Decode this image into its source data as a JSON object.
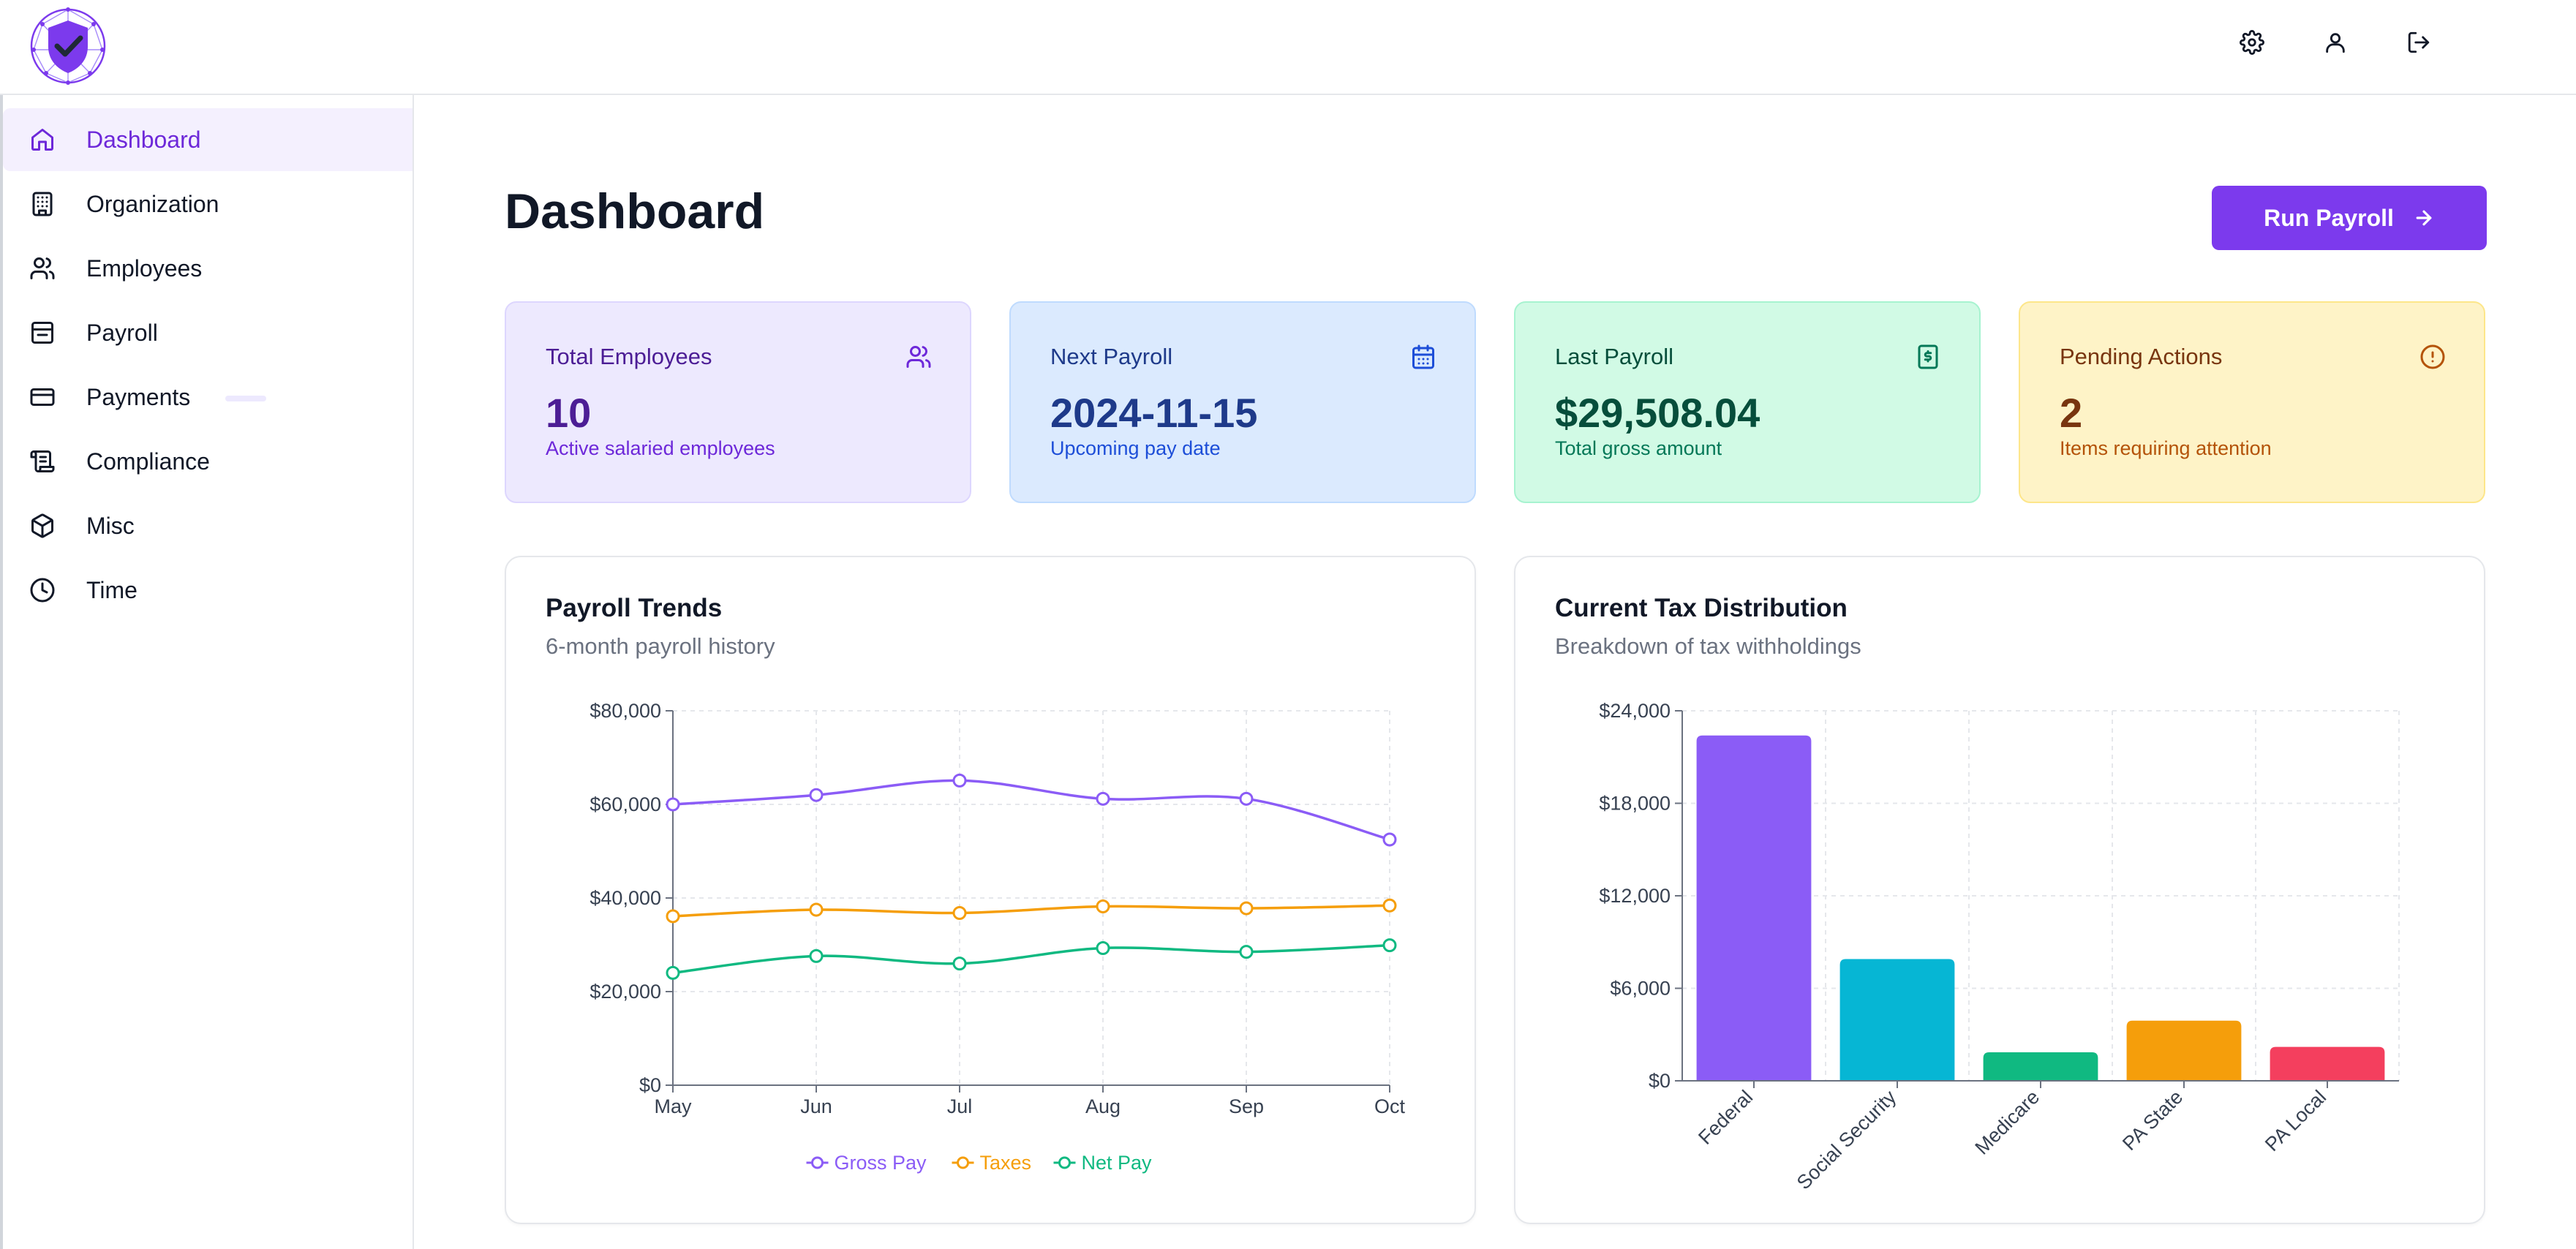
{
  "header": {
    "logo_icon": "shield-check-logo-icon",
    "actions": [
      {
        "name": "settings",
        "icon": "gear-icon"
      },
      {
        "name": "profile",
        "icon": "user-icon"
      },
      {
        "name": "logout",
        "icon": "logout-icon"
      }
    ]
  },
  "sidebar": {
    "items": [
      {
        "label": "Dashboard",
        "icon": "home-icon",
        "active": true
      },
      {
        "label": "Organization",
        "icon": "building-icon"
      },
      {
        "label": "Employees",
        "icon": "users-icon"
      },
      {
        "label": "Payroll",
        "icon": "payroll-icon"
      },
      {
        "label": "Payments",
        "icon": "credit-card-icon"
      },
      {
        "label": "Compliance",
        "icon": "scroll-icon"
      },
      {
        "label": "Misc",
        "icon": "package-icon"
      },
      {
        "label": "Time",
        "icon": "clock-icon"
      }
    ]
  },
  "main": {
    "title": "Dashboard",
    "run_payroll_label": "Run Payroll",
    "cards": [
      {
        "label": "Total Employees",
        "value": "10",
        "sub": "Active salaried employees",
        "icon": "users-icon",
        "bg": "#ede9fe",
        "border": "#ddd6fe",
        "label_color": "#4c1d95",
        "value_color": "#4c1d95",
        "sub_color": "#6d28d9"
      },
      {
        "label": "Next Payroll",
        "value": "2024-11-15",
        "sub": "Upcoming pay date",
        "icon": "calendar-icon",
        "bg": "#dbeafe",
        "border": "#bfdbfe",
        "label_color": "#1e3a8a",
        "value_color": "#1e3a8a",
        "sub_color": "#1d4ed8"
      },
      {
        "label": "Last Payroll",
        "value": "$29,508.04",
        "sub": "Total gross amount",
        "icon": "dollar-receipt-icon",
        "bg": "#d1fae5",
        "border": "#a7f3d0",
        "label_color": "#064e3b",
        "value_color": "#064e3b",
        "sub_color": "#047857"
      },
      {
        "label": "Pending Actions",
        "value": "2",
        "sub": "Items requiring attention",
        "icon": "alert-circle-icon",
        "bg": "#fef3c7",
        "border": "#fde68a",
        "label_color": "#78350f",
        "value_color": "#78350f",
        "sub_color": "#b45309"
      }
    ]
  },
  "charts": {
    "trends": {
      "title": "Payroll Trends",
      "subtitle": "6-month payroll history"
    },
    "tax": {
      "title": "Current Tax Distribution",
      "subtitle": "Breakdown of tax withholdings"
    }
  },
  "chart_data": [
    {
      "type": "line",
      "title": "Payroll Trends",
      "subtitle": "6-month payroll history",
      "x": [
        "May",
        "Jun",
        "Jul",
        "Aug",
        "Sep",
        "Oct"
      ],
      "ylim": [
        0,
        80000
      ],
      "yticks": [
        "$0",
        "$20,000",
        "$40,000",
        "$60,000",
        "$80,000"
      ],
      "ytick_values": [
        0,
        20000,
        40000,
        60000,
        80000
      ],
      "legend": "bottom-center",
      "grid": true,
      "series": [
        {
          "name": "Gross Pay",
          "color": "#8b5cf6",
          "values": [
            60000,
            62000,
            65100,
            61200,
            61200,
            52500
          ]
        },
        {
          "name": "Taxes",
          "color": "#f59e0b",
          "values": [
            36100,
            37500,
            36800,
            38200,
            37800,
            38400
          ]
        },
        {
          "name": "Net Pay",
          "color": "#10b981",
          "values": [
            24000,
            27600,
            26000,
            29300,
            28500,
            29900
          ]
        }
      ]
    },
    {
      "type": "bar",
      "title": "Current Tax Distribution",
      "subtitle": "Breakdown of tax withholdings",
      "categories": [
        "Federal",
        "Social Security",
        "Medicare",
        "PA State",
        "PA Local"
      ],
      "values": [
        22400,
        7900,
        1850,
        3900,
        2200
      ],
      "colors": [
        "#8b5cf6",
        "#06b6d4",
        "#10b981",
        "#f59e0b",
        "#f43f5e"
      ],
      "ylim": [
        0,
        24000
      ],
      "yticks": [
        "$0",
        "$6,000",
        "$12,000",
        "$18,000",
        "$24,000"
      ],
      "ytick_values": [
        0,
        6000,
        12000,
        18000,
        24000
      ],
      "grid": true
    }
  ]
}
